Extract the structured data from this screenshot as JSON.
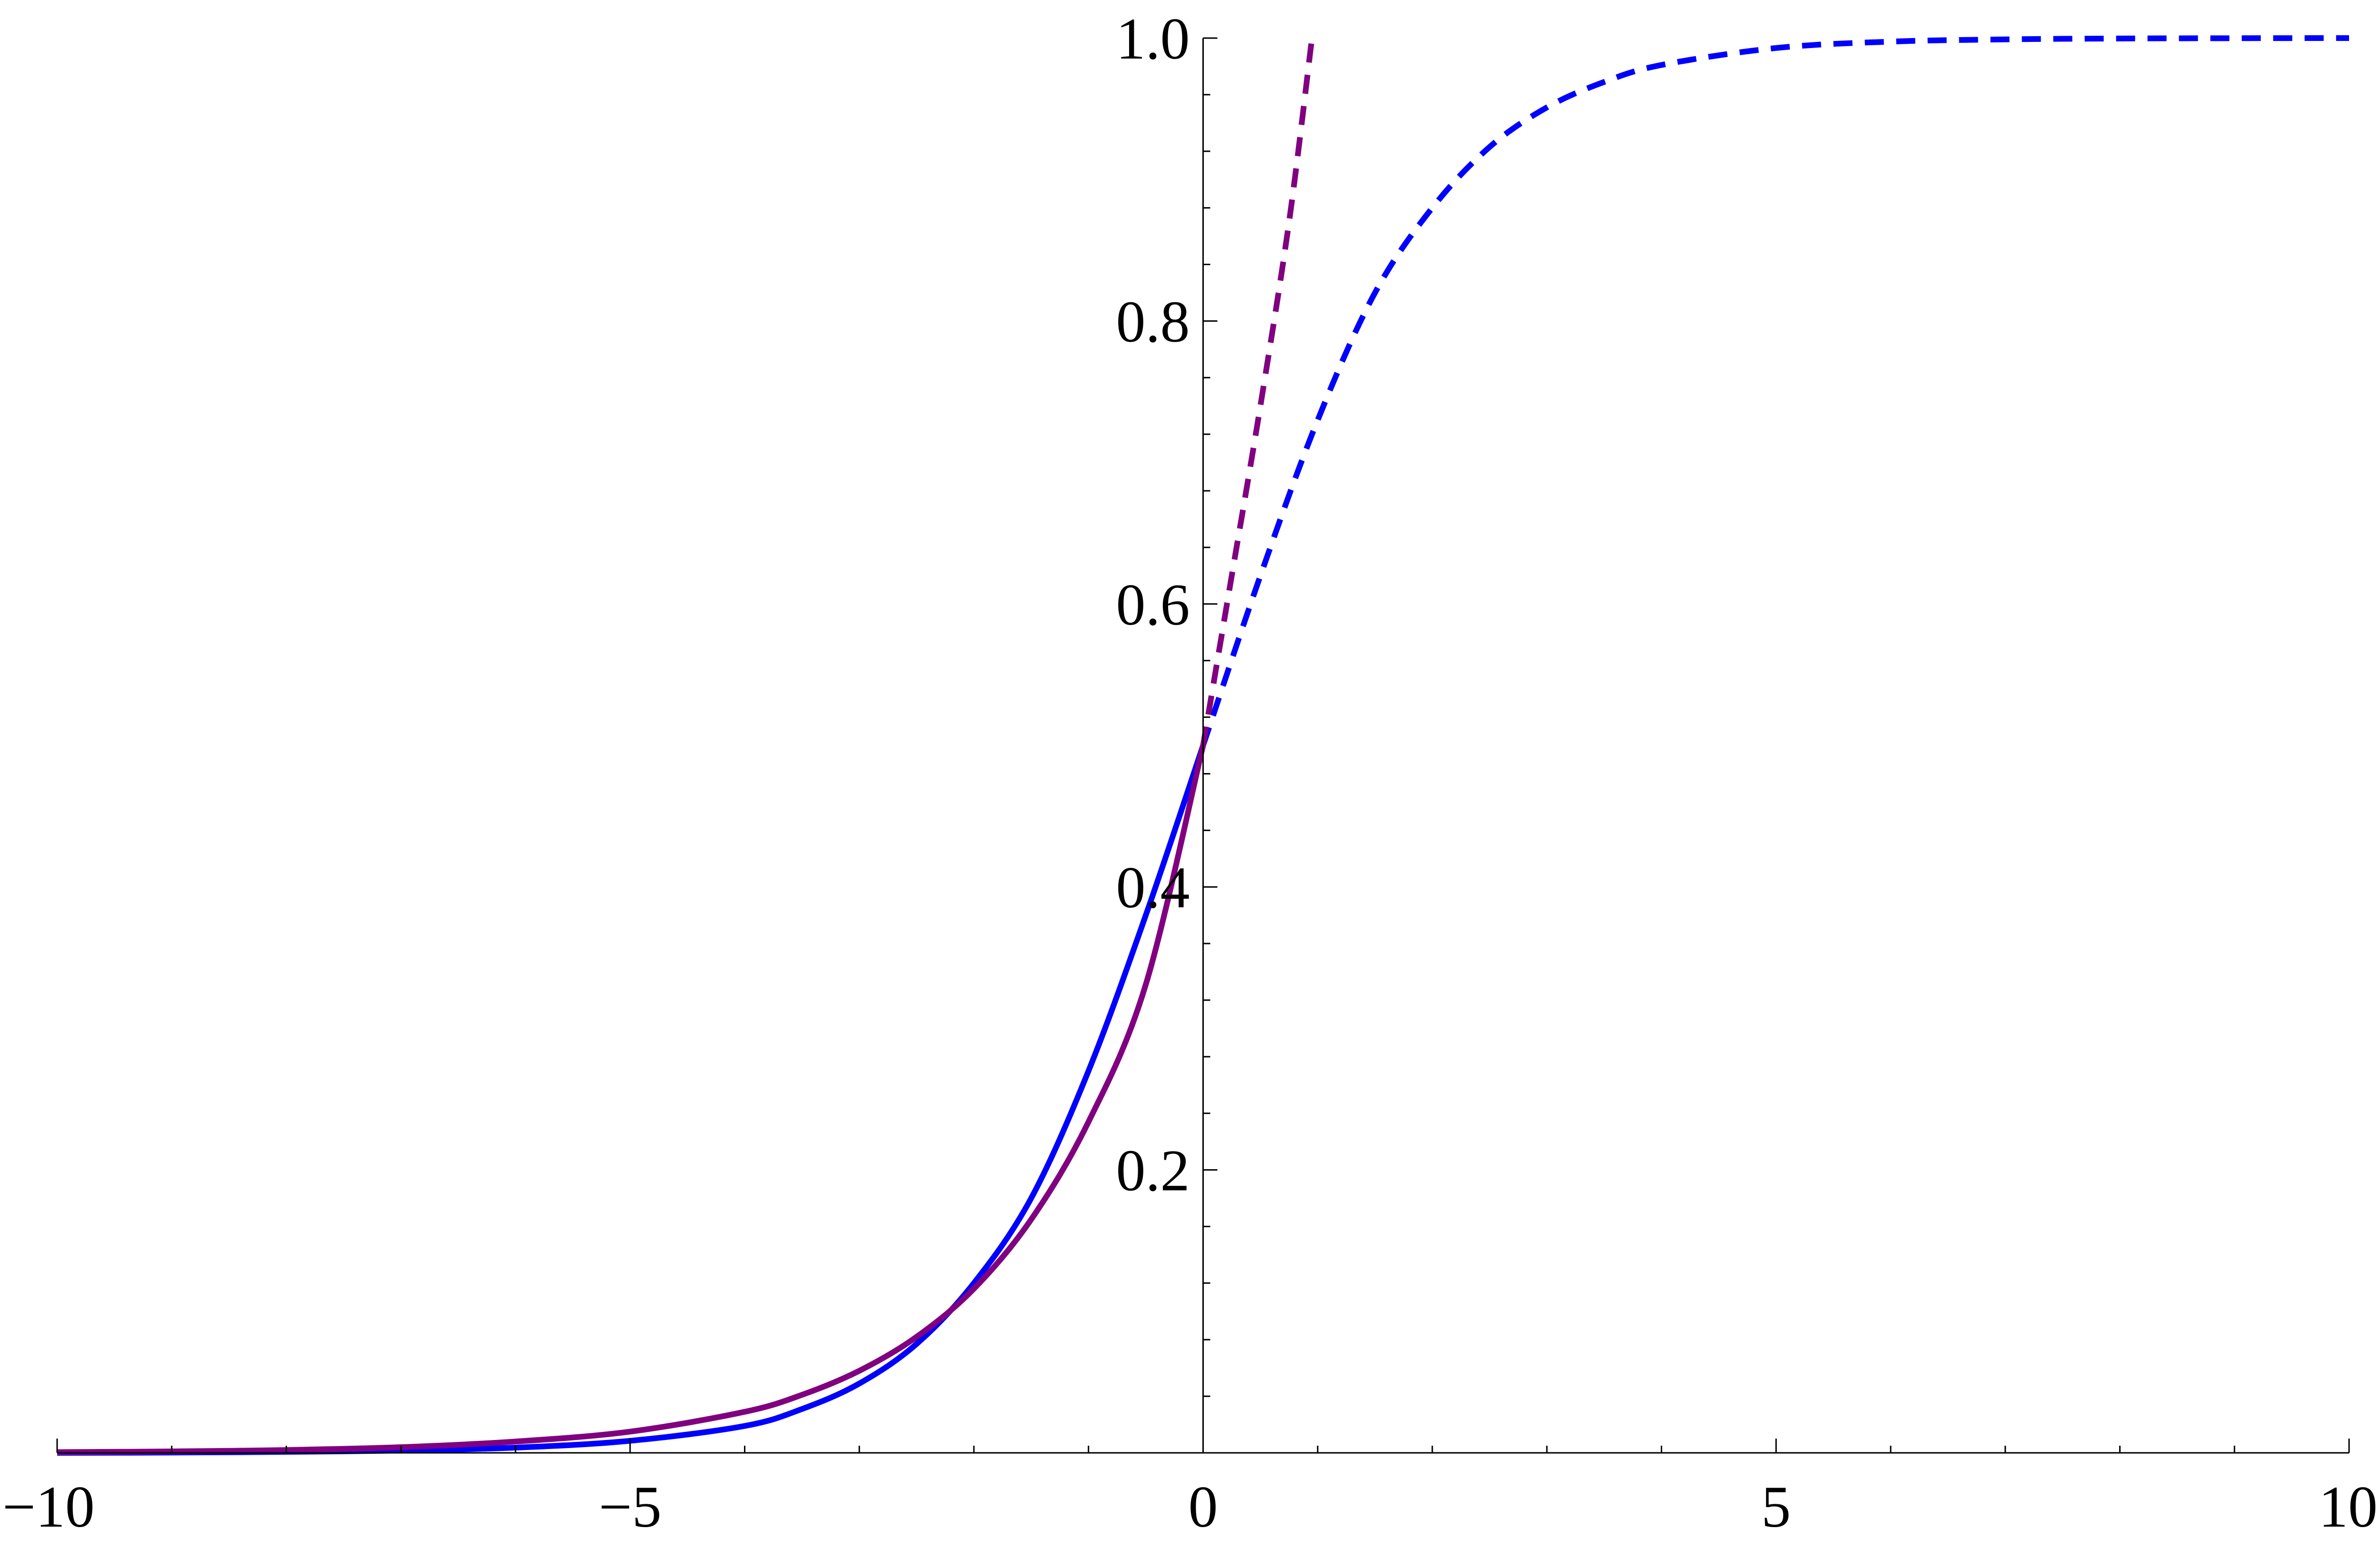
{
  "chart_data": {
    "type": "line",
    "title": "",
    "xlabel": "",
    "ylabel": "",
    "xlim": [
      -10,
      10
    ],
    "ylim": [
      0,
      1
    ],
    "grid": false,
    "x_ticks": [
      -10,
      -5,
      0,
      5,
      10
    ],
    "x_tick_labels": [
      "−10",
      "−5",
      "0",
      "5",
      "10"
    ],
    "y_ticks": [
      0.2,
      0.4,
      0.6,
      0.8,
      1.0
    ],
    "y_tick_labels": [
      "0.2",
      "0.4",
      "0.6",
      "0.8",
      "1.0"
    ],
    "series": [
      {
        "color": "#0000ff",
        "style": "solid",
        "x": [
          -10,
          -9,
          -8,
          -7,
          -6,
          -5,
          -4,
          -3.5,
          -3,
          -2.5,
          -2,
          -1.5,
          -1,
          -0.5,
          0
        ],
        "y": [
          0.0,
          0.0002,
          0.0007,
          0.0016,
          0.0037,
          0.0085,
          0.019,
          0.031,
          0.049,
          0.077,
          0.12,
          0.18,
          0.27,
          0.38,
          0.5
        ]
      },
      {
        "color": "#0000ff",
        "style": "dashed",
        "x": [
          0,
          0.5,
          1,
          1.5,
          2,
          2.5,
          3,
          3.5,
          4,
          5,
          6,
          7,
          8,
          9,
          10
        ],
        "y": [
          0.5,
          0.62,
          0.73,
          0.82,
          0.88,
          0.923,
          0.951,
          0.969,
          0.981,
          0.993,
          0.9975,
          0.9991,
          0.9997,
          0.9999,
          1.0
        ]
      },
      {
        "color": "#800080",
        "style": "solid",
        "x": [
          -10,
          -9,
          -8,
          -7,
          -6,
          -5,
          -4,
          -3.5,
          -3,
          -2.5,
          -2,
          -1.5,
          -1,
          -0.5,
          0
        ],
        "y": [
          0.0005,
          0.001,
          0.002,
          0.004,
          0.008,
          0.015,
          0.029,
          0.041,
          0.058,
          0.082,
          0.116,
          0.165,
          0.234,
          0.331,
          0.5
        ]
      },
      {
        "color": "#800080",
        "style": "dashed",
        "x": [
          0,
          0.25,
          0.5,
          0.75,
          0.95
        ],
        "y": [
          0.5,
          0.62,
          0.74,
          0.87,
          1.0
        ]
      }
    ]
  }
}
